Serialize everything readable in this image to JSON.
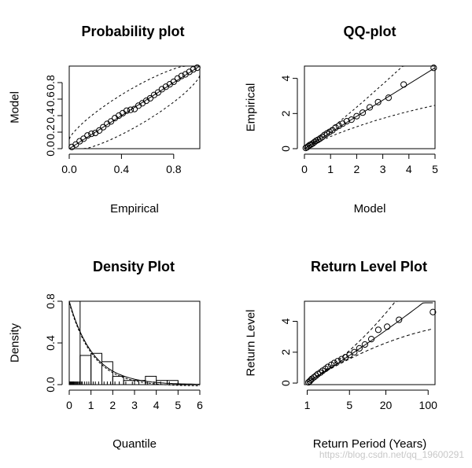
{
  "watermark": "https://blog.csdn.net/qq_19600291",
  "chart_data": [
    {
      "type": "scatter",
      "title": "Probability plot",
      "xlabel": "Empirical",
      "ylabel": "Model",
      "xlim": [
        0,
        1
      ],
      "ylim": [
        0,
        1
      ],
      "x_ticks": [
        "0.0",
        "0.4",
        "0.8"
      ],
      "y_ticks": [
        "0.0",
        "0.2",
        "0.4",
        "0.6",
        "0.8"
      ],
      "reference_line": "y = x",
      "confidence_bands": "dashed",
      "x": [
        0.02,
        0.05,
        0.08,
        0.11,
        0.14,
        0.17,
        0.2,
        0.23,
        0.26,
        0.29,
        0.32,
        0.35,
        0.38,
        0.41,
        0.44,
        0.47,
        0.5,
        0.53,
        0.56,
        0.59,
        0.62,
        0.65,
        0.68,
        0.71,
        0.74,
        0.77,
        0.8,
        0.83,
        0.86,
        0.89,
        0.92,
        0.95,
        0.98
      ],
      "y": [
        0.02,
        0.05,
        0.09,
        0.12,
        0.16,
        0.18,
        0.19,
        0.22,
        0.26,
        0.3,
        0.33,
        0.37,
        0.4,
        0.43,
        0.46,
        0.47,
        0.48,
        0.52,
        0.55,
        0.58,
        0.61,
        0.65,
        0.68,
        0.72,
        0.75,
        0.78,
        0.81,
        0.85,
        0.88,
        0.9,
        0.93,
        0.96,
        0.98
      ]
    },
    {
      "type": "scatter",
      "title": "QQ-plot",
      "xlabel": "Model",
      "ylabel": "Empirical",
      "xlim": [
        0,
        5
      ],
      "ylim": [
        0,
        4.7
      ],
      "x_ticks": [
        "0",
        "1",
        "2",
        "3",
        "4",
        "5"
      ],
      "y_ticks": [
        "0",
        "2",
        "4"
      ],
      "reference_line": "y = x",
      "confidence_bands": "dashed",
      "x": [
        0.05,
        0.1,
        0.15,
        0.2,
        0.26,
        0.32,
        0.38,
        0.45,
        0.52,
        0.6,
        0.68,
        0.77,
        0.86,
        0.96,
        1.07,
        1.19,
        1.32,
        1.46,
        1.62,
        1.8,
        2.0,
        2.23,
        2.5,
        2.82,
        3.22,
        3.8,
        4.95
      ],
      "y": [
        0.04,
        0.08,
        0.14,
        0.2,
        0.24,
        0.3,
        0.37,
        0.45,
        0.5,
        0.58,
        0.66,
        0.78,
        0.86,
        0.95,
        1.05,
        1.2,
        1.3,
        1.42,
        1.56,
        1.65,
        1.85,
        2.05,
        2.35,
        2.65,
        2.9,
        3.65,
        4.6
      ]
    },
    {
      "type": "bar",
      "title": "Density Plot",
      "xlabel": "Quantile",
      "ylabel": "Density",
      "xlim": [
        0,
        6
      ],
      "ylim": [
        0,
        0.8
      ],
      "x_ticks": [
        "0",
        "1",
        "2",
        "3",
        "4",
        "5",
        "6"
      ],
      "y_ticks": [
        "0.0",
        "0.4",
        "0.8"
      ],
      "bin_edges": [
        0,
        0.5,
        1,
        1.5,
        2,
        2.5,
        3,
        3.5,
        4,
        4.5,
        5
      ],
      "values": [
        0.8,
        0.28,
        0.3,
        0.22,
        0.08,
        0.04,
        0.04,
        0.08,
        0.04,
        0.04
      ],
      "density_curve": "fitted, exponential-like decay",
      "rug": "data points along x-axis"
    },
    {
      "type": "scatter",
      "title": "Return Level Plot",
      "xlabel": "Return Period (Years)",
      "ylabel": "Return Level",
      "x_scale": "log",
      "xlim": [
        0.9,
        130
      ],
      "ylim": [
        -0.1,
        5.3
      ],
      "x_ticks": [
        "1",
        "5",
        "20",
        "100"
      ],
      "y_ticks": [
        "0",
        "2",
        "4"
      ],
      "confidence_bands": "dashed",
      "fitted_line": "solid",
      "x": [
        1.05,
        1.1,
        1.15,
        1.2,
        1.3,
        1.4,
        1.5,
        1.65,
        1.8,
        2.0,
        2.2,
        2.5,
        2.8,
        3.2,
        3.7,
        4.3,
        5.0,
        6.0,
        7.3,
        9.0,
        11.5,
        15.0,
        21.0,
        33.0,
        120.0
      ],
      "y": [
        0.05,
        0.12,
        0.2,
        0.28,
        0.38,
        0.48,
        0.58,
        0.68,
        0.8,
        0.92,
        1.05,
        1.18,
        1.3,
        1.42,
        1.55,
        1.68,
        1.82,
        2.0,
        2.25,
        2.5,
        2.85,
        3.45,
        3.65,
        4.1,
        4.6
      ]
    }
  ]
}
